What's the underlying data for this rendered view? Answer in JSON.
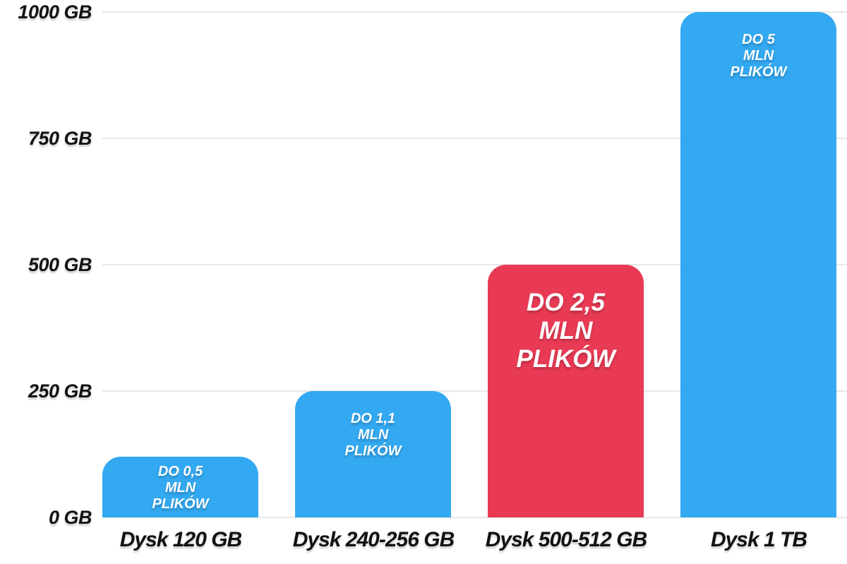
{
  "chart_data": {
    "type": "bar",
    "title": "",
    "xlabel": "",
    "ylabel": "",
    "unit": "GB",
    "categories": [
      "Dysk 120 GB",
      "Dysk 240-256 GB",
      "Dysk 500-512 GB",
      "Dysk 1 TB"
    ],
    "values": [
      120,
      250,
      500,
      1000
    ],
    "bar_labels": [
      [
        "DO 0,5",
        "MLN",
        "PLIKÓW"
      ],
      [
        "DO 1,1",
        "MLN",
        "PLIKÓW"
      ],
      [
        "DO 2,5",
        "MLN",
        "PLIKÓW"
      ],
      [
        "DO 5",
        "MLN",
        "PLIKÓW"
      ]
    ],
    "highlight_index": 2,
    "y_ticks": [
      {
        "value": 0,
        "label": "0 GB"
      },
      {
        "value": 250,
        "label": "250 GB"
      },
      {
        "value": 500,
        "label": "500 GB"
      },
      {
        "value": 750,
        "label": "750 GB"
      },
      {
        "value": 1000,
        "label": "1000 GB"
      }
    ],
    "ylim": [
      0,
      1000
    ],
    "grid": true,
    "legend_position": "none",
    "colors": {
      "bar": "#33A9F2",
      "highlight": "#E93A55",
      "grid": "#E7E7E7",
      "axis_text": "#121212",
      "bar_label_text": "#FFFFFF",
      "background": "#FFFFFF"
    }
  }
}
